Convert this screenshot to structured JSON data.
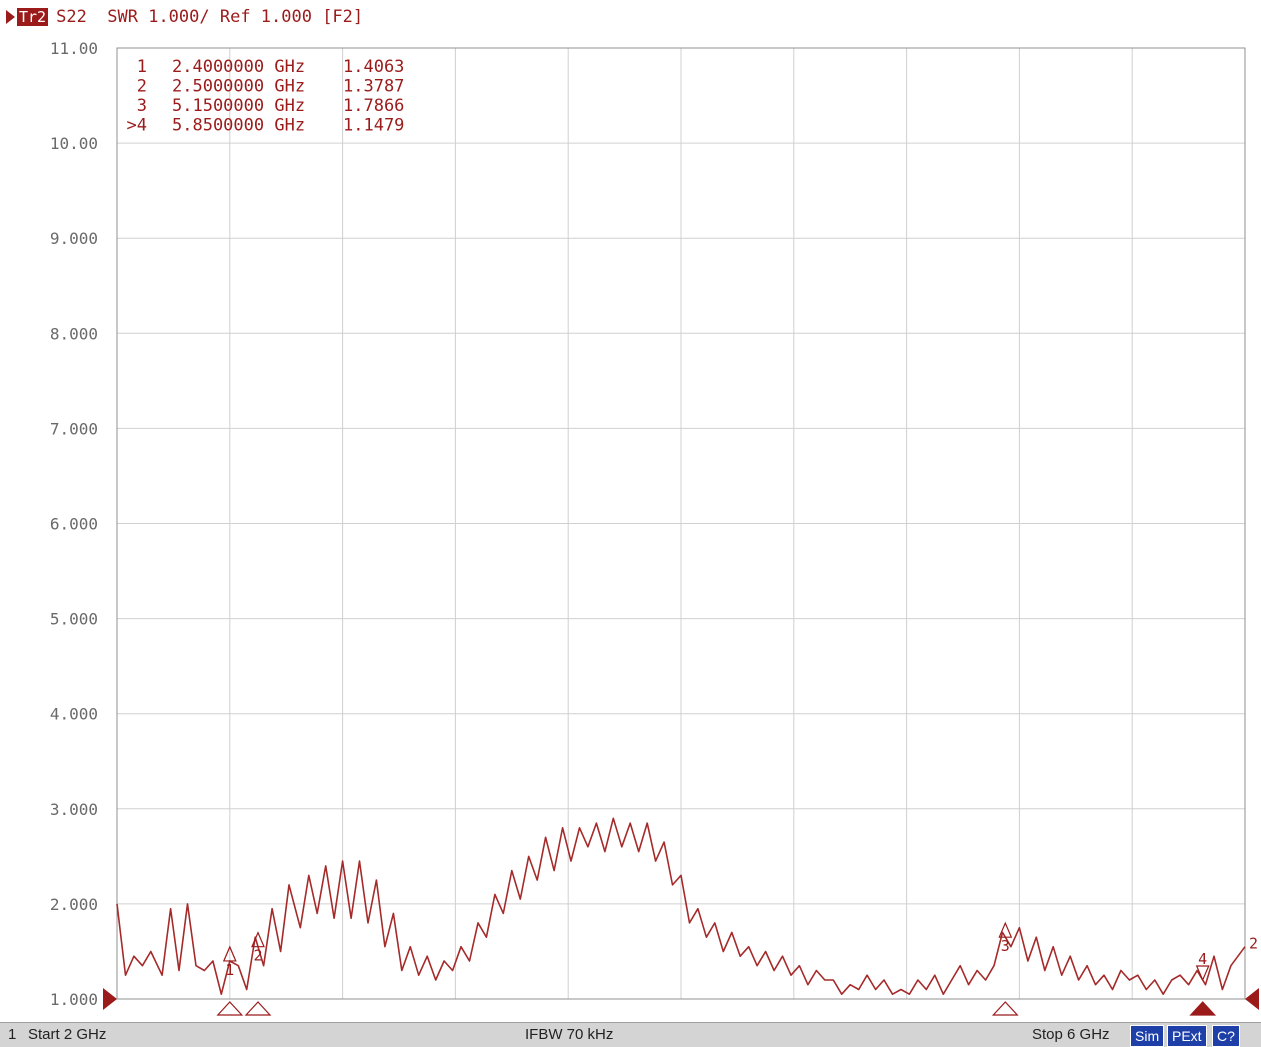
{
  "header": {
    "trace_badge": "Tr2",
    "trace_info": "S22  SWR 1.000/ Ref 1.000 [F2]"
  },
  "markers": [
    {
      "num": "1",
      "freq": "2.4000000 GHz",
      "value": "1.4063",
      "label": "1"
    },
    {
      "num": "2",
      "freq": "2.5000000 GHz",
      "value": "1.3787",
      "label": "2"
    },
    {
      "num": "3",
      "freq": "5.1500000 GHz",
      "value": "1.7866",
      "label": "3"
    },
    {
      "num": ">4",
      "freq": "5.8500000 GHz",
      "value": "1.1479",
      "label": "4"
    }
  ],
  "status": {
    "channel": "1",
    "start": "Start 2 GHz",
    "ifbw": "IFBW 70 kHz",
    "stop": "Stop 6 GHz",
    "btn_sim": "Sim",
    "btn_pext": "PExt",
    "btn_c2": "C?"
  },
  "colors": {
    "trace": "#a52a2a",
    "grid": "#d0d0d0",
    "accent": "#9b1b1b"
  },
  "chart_data": {
    "type": "line",
    "title": "",
    "xlabel": "",
    "ylabel": "",
    "xlim": [
      2,
      6
    ],
    "ylim": [
      1,
      11
    ],
    "yticks": [
      "11.00",
      "10.00",
      "9.000",
      "8.000",
      "7.000",
      "6.000",
      "5.000",
      "4.000",
      "3.000",
      "2.000",
      "1.000"
    ],
    "grid": true,
    "series": [
      {
        "x": [
          2.0,
          2.03,
          2.06,
          2.09,
          2.12,
          2.16,
          2.19,
          2.22,
          2.25,
          2.28,
          2.31,
          2.34,
          2.37,
          2.4,
          2.43,
          2.46,
          2.49,
          2.52,
          2.55,
          2.58,
          2.61,
          2.65,
          2.68,
          2.71,
          2.74,
          2.77,
          2.8,
          2.83,
          2.86,
          2.89,
          2.92,
          2.95,
          2.98,
          3.01,
          3.04,
          3.07,
          3.1,
          3.13,
          3.16,
          3.19,
          3.22,
          3.25,
          3.28,
          3.31,
          3.34,
          3.37,
          3.4,
          3.43,
          3.46,
          3.49,
          3.52,
          3.55,
          3.58,
          3.61,
          3.64,
          3.67,
          3.7,
          3.73,
          3.76,
          3.79,
          3.82,
          3.85,
          3.88,
          3.91,
          3.94,
          3.97,
          4.0,
          4.03,
          4.06,
          4.09,
          4.12,
          4.15,
          4.18,
          4.21,
          4.24,
          4.27,
          4.3,
          4.33,
          4.36,
          4.39,
          4.42,
          4.45,
          4.48,
          4.51,
          4.54,
          4.57,
          4.6,
          4.63,
          4.66,
          4.69,
          4.72,
          4.75,
          4.78,
          4.81,
          4.84,
          4.87,
          4.9,
          4.93,
          4.96,
          4.99,
          5.02,
          5.05,
          5.08,
          5.11,
          5.14,
          5.17,
          5.2,
          5.23,
          5.26,
          5.29,
          5.32,
          5.35,
          5.38,
          5.41,
          5.44,
          5.47,
          5.5,
          5.53,
          5.56,
          5.59,
          5.62,
          5.65,
          5.68,
          5.71,
          5.74,
          5.77,
          5.8,
          5.83,
          5.86,
          5.89,
          5.92,
          5.95,
          6.0
        ],
        "y": [
          2.0,
          1.25,
          1.45,
          1.35,
          1.5,
          1.25,
          1.95,
          1.3,
          2.0,
          1.35,
          1.3,
          1.4,
          1.05,
          1.4,
          1.35,
          1.1,
          1.65,
          1.35,
          1.95,
          1.5,
          2.2,
          1.75,
          2.3,
          1.9,
          2.4,
          1.85,
          2.45,
          1.85,
          2.45,
          1.8,
          2.25,
          1.55,
          1.9,
          1.3,
          1.55,
          1.25,
          1.45,
          1.2,
          1.4,
          1.3,
          1.55,
          1.4,
          1.8,
          1.65,
          2.1,
          1.9,
          2.35,
          2.05,
          2.5,
          2.25,
          2.7,
          2.35,
          2.8,
          2.45,
          2.8,
          2.6,
          2.85,
          2.55,
          2.9,
          2.6,
          2.85,
          2.55,
          2.85,
          2.45,
          2.65,
          2.2,
          2.3,
          1.8,
          1.95,
          1.65,
          1.8,
          1.5,
          1.7,
          1.45,
          1.55,
          1.35,
          1.5,
          1.3,
          1.45,
          1.25,
          1.35,
          1.15,
          1.3,
          1.2,
          1.2,
          1.05,
          1.15,
          1.1,
          1.25,
          1.1,
          1.2,
          1.05,
          1.1,
          1.05,
          1.2,
          1.1,
          1.25,
          1.05,
          1.2,
          1.35,
          1.15,
          1.3,
          1.2,
          1.35,
          1.7,
          1.55,
          1.75,
          1.4,
          1.65,
          1.3,
          1.55,
          1.25,
          1.45,
          1.2,
          1.35,
          1.15,
          1.25,
          1.1,
          1.3,
          1.2,
          1.25,
          1.1,
          1.2,
          1.05,
          1.2,
          1.25,
          1.15,
          1.3,
          1.15,
          1.45,
          1.1,
          1.35,
          1.55
        ]
      }
    ],
    "marker_x": [
      2.4,
      2.5,
      5.15,
      5.85
    ]
  }
}
